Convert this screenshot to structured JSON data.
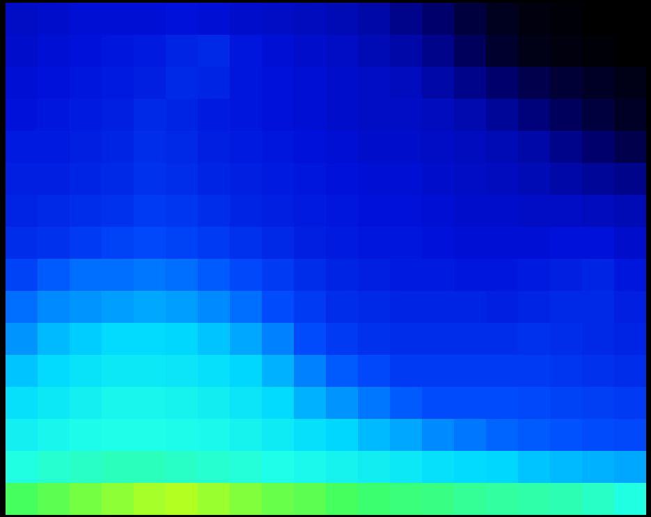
{
  "chart_data": {
    "type": "heatmap",
    "tick_labels": false,
    "zlim": [
      0,
      100
    ],
    "cells": [
      [
        26,
        27,
        28,
        28,
        28,
        29,
        28,
        27,
        26,
        25,
        24,
        22,
        18,
        14,
        8,
        4,
        2,
        1,
        0,
        0
      ],
      [
        27,
        28,
        29,
        30,
        31,
        33,
        34,
        30,
        28,
        27,
        26,
        24,
        22,
        18,
        12,
        6,
        3,
        2,
        1,
        0
      ],
      [
        28,
        29,
        30,
        31,
        32,
        34,
        33,
        30,
        29,
        28,
        27,
        26,
        25,
        22,
        18,
        14,
        10,
        7,
        5,
        3
      ],
      [
        29,
        30,
        31,
        32,
        34,
        33,
        31,
        30,
        29,
        28,
        27,
        26,
        26,
        25,
        23,
        20,
        16,
        12,
        8,
        5
      ],
      [
        31,
        31,
        32,
        33,
        35,
        34,
        32,
        31,
        30,
        29,
        28,
        27,
        27,
        26,
        25,
        24,
        22,
        18,
        14,
        10
      ],
      [
        32,
        32,
        33,
        34,
        36,
        35,
        33,
        32,
        31,
        30,
        29,
        28,
        28,
        27,
        26,
        25,
        24,
        22,
        20,
        18
      ],
      [
        33,
        34,
        35,
        36,
        38,
        37,
        35,
        33,
        32,
        31,
        30,
        29,
        29,
        28,
        27,
        27,
        26,
        26,
        25,
        24
      ],
      [
        35,
        36,
        38,
        40,
        41,
        40,
        38,
        36,
        34,
        32,
        31,
        30,
        30,
        29,
        28,
        28,
        28,
        29,
        29,
        27
      ],
      [
        40,
        44,
        46,
        46,
        47,
        46,
        44,
        41,
        38,
        35,
        33,
        32,
        31,
        31,
        30,
        30,
        31,
        32,
        33,
        30
      ],
      [
        46,
        49,
        50,
        51,
        52,
        51,
        49,
        46,
        42,
        38,
        35,
        34,
        33,
        33,
        33,
        32,
        33,
        34,
        34,
        32
      ],
      [
        50,
        54,
        56,
        58,
        58,
        57,
        55,
        52,
        48,
        42,
        38,
        36,
        35,
        35,
        35,
        35,
        36,
        35,
        34,
        33
      ],
      [
        55,
        58,
        61,
        63,
        63,
        62,
        60,
        57,
        53,
        48,
        44,
        41,
        38,
        38,
        38,
        38,
        38,
        37,
        36,
        35
      ],
      [
        60,
        63,
        66,
        68,
        68,
        67,
        65,
        62,
        58,
        53,
        50,
        47,
        44,
        42,
        42,
        42,
        41,
        40,
        39,
        38
      ],
      [
        66,
        68,
        70,
        71,
        71,
        70,
        69,
        67,
        64,
        60,
        57,
        54,
        52,
        49,
        47,
        45,
        44,
        43,
        42,
        41
      ],
      [
        72,
        74,
        75,
        76,
        76,
        75,
        74,
        73,
        71,
        69,
        67,
        65,
        63,
        60,
        58,
        57,
        55,
        54,
        53,
        52
      ],
      [
        86,
        88,
        90,
        92,
        94,
        95,
        93,
        91,
        89,
        88,
        86,
        84,
        83,
        82,
        80,
        79,
        78,
        77,
        75,
        72
      ]
    ]
  }
}
